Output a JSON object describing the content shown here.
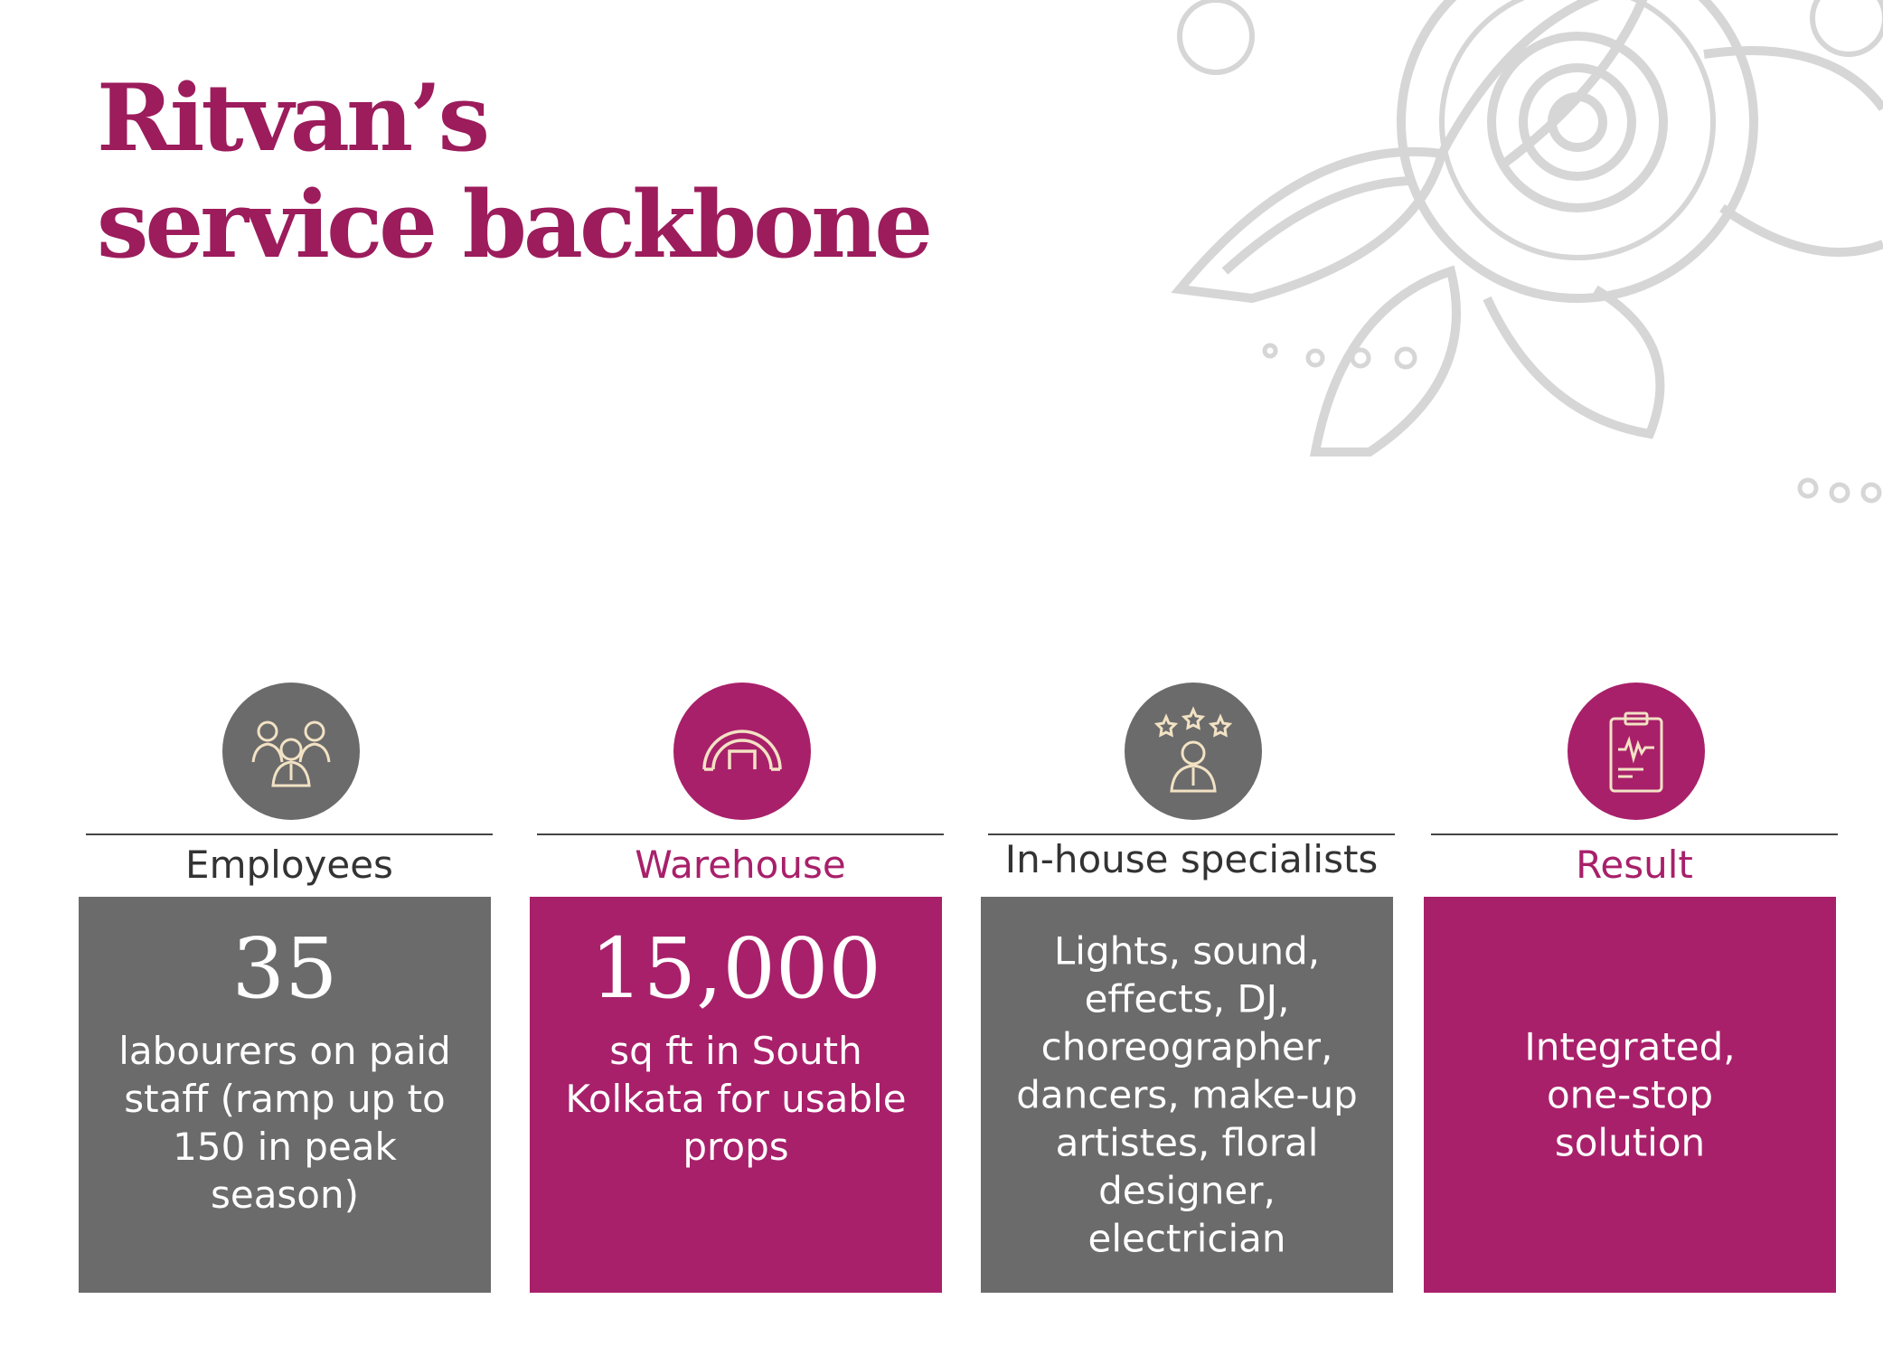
{
  "title": {
    "line1": "Ritvan’s",
    "line2": "service backbone"
  },
  "colors": {
    "accent": "#a8206a",
    "grey": "#6b6b6b",
    "icon_line": "#f2e2c4"
  },
  "columns": [
    {
      "label": "Employees",
      "icon": "people-group-icon",
      "big": "35",
      "desc": "labourers on paid staff (ramp up to 150 in peak season)"
    },
    {
      "label": "Warehouse",
      "icon": "warehouse-icon",
      "big": "15,000",
      "desc": "sq ft in South Kolkata for usable props"
    },
    {
      "label": "In-house specialists",
      "icon": "specialist-stars-icon",
      "desc": "Lights, sound, effects, DJ, choreographer, dancers, make-up artistes, floral designer, electrician"
    },
    {
      "label": "Result",
      "icon": "clipboard-icon",
      "desc": "Integrated, one-stop solution"
    }
  ]
}
